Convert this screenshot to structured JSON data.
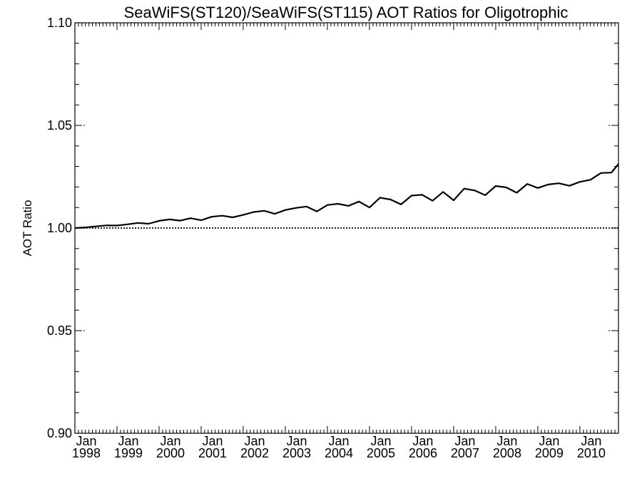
{
  "chart_data": {
    "type": "line",
    "title": "SeaWiFS(ST120)/SeaWiFS(ST115)  AOT Ratios for Oligotrophic",
    "xlabel": "",
    "ylabel": "AOT Ratio",
    "ylim": [
      0.9,
      1.1
    ],
    "xlim": [
      "1998-01",
      "2010-12"
    ],
    "y_ticks": [
      "0.90",
      "0.95",
      "1.00",
      "1.05",
      "1.10"
    ],
    "x_ticks": [
      {
        "month": "Jan",
        "year": "1998"
      },
      {
        "month": "Jan",
        "year": "1999"
      },
      {
        "month": "Jan",
        "year": "2000"
      },
      {
        "month": "Jan",
        "year": "2001"
      },
      {
        "month": "Jan",
        "year": "2002"
      },
      {
        "month": "Jan",
        "year": "2003"
      },
      {
        "month": "Jan",
        "year": "2004"
      },
      {
        "month": "Jan",
        "year": "2005"
      },
      {
        "month": "Jan",
        "year": "2006"
      },
      {
        "month": "Jan",
        "year": "2007"
      },
      {
        "month": "Jan",
        "year": "2008"
      },
      {
        "month": "Jan",
        "year": "2009"
      },
      {
        "month": "Jan",
        "year": "2010"
      }
    ],
    "reference_line": {
      "y": 1.0,
      "style": "dotted"
    },
    "series": [
      {
        "color": "#000000",
        "points": [
          [
            "1998-01",
            1.0
          ],
          [
            "1998-04",
            1.0003
          ],
          [
            "1998-07",
            1.0008
          ],
          [
            "1998-10",
            1.0013
          ],
          [
            "1999-01",
            1.0012
          ],
          [
            "1999-04",
            1.0018
          ],
          [
            "1999-07",
            1.0025
          ],
          [
            "1999-10",
            1.0021
          ],
          [
            "2000-01",
            1.0035
          ],
          [
            "2000-04",
            1.0042
          ],
          [
            "2000-07",
            1.0036
          ],
          [
            "2000-10",
            1.0048
          ],
          [
            "2001-01",
            1.0038
          ],
          [
            "2001-04",
            1.0055
          ],
          [
            "2001-07",
            1.006
          ],
          [
            "2001-10",
            1.0052
          ],
          [
            "2002-01",
            1.0064
          ],
          [
            "2002-04",
            1.0078
          ],
          [
            "2002-07",
            1.0084
          ],
          [
            "2002-10",
            1.0069
          ],
          [
            "2003-01",
            1.0088
          ],
          [
            "2003-04",
            1.0098
          ],
          [
            "2003-07",
            1.0105
          ],
          [
            "2003-10",
            1.0081
          ],
          [
            "2004-01",
            1.0112
          ],
          [
            "2004-04",
            1.0118
          ],
          [
            "2004-07",
            1.0108
          ],
          [
            "2004-10",
            1.0129
          ],
          [
            "2005-01",
            1.01
          ],
          [
            "2005-04",
            1.0148
          ],
          [
            "2005-07",
            1.0139
          ],
          [
            "2005-10",
            1.0115
          ],
          [
            "2006-01",
            1.0158
          ],
          [
            "2006-04",
            1.0162
          ],
          [
            "2006-07",
            1.0133
          ],
          [
            "2006-10",
            1.0176
          ],
          [
            "2007-01",
            1.0135
          ],
          [
            "2007-04",
            1.0192
          ],
          [
            "2007-07",
            1.0183
          ],
          [
            "2007-10",
            1.016
          ],
          [
            "2008-01",
            1.0205
          ],
          [
            "2008-04",
            1.0198
          ],
          [
            "2008-07",
            1.0172
          ],
          [
            "2008-10",
            1.0215
          ],
          [
            "2009-01",
            1.0195
          ],
          [
            "2009-04",
            1.0212
          ],
          [
            "2009-07",
            1.0218
          ],
          [
            "2009-10",
            1.0206
          ],
          [
            "2010-01",
            1.0225
          ],
          [
            "2010-04",
            1.0235
          ],
          [
            "2010-07",
            1.0268
          ],
          [
            "2010-10",
            1.027
          ],
          [
            "2010-12",
            1.0312
          ]
        ]
      }
    ],
    "grid": false
  }
}
